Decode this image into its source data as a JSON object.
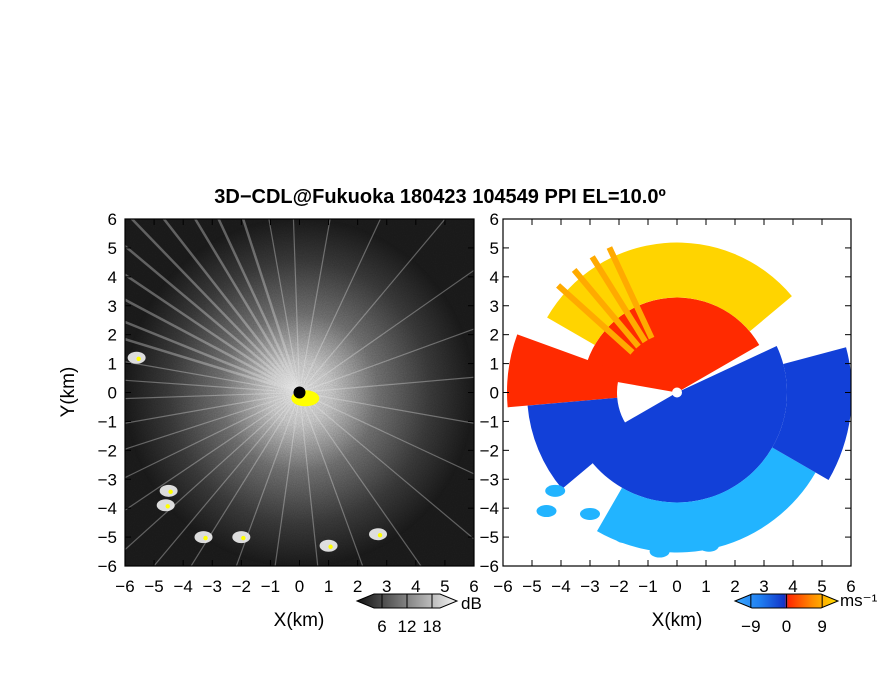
{
  "figure": {
    "title": "3D−CDL@Fukuoka 180423 104549 PPI EL=10.0º"
  },
  "chart_data": [
    {
      "type": "heatmap",
      "panel": "left",
      "quantity": "reflectivity / signal (dB)",
      "xlabel": "X(km)",
      "ylabel": "Y(km)",
      "xlim": [
        -6,
        6
      ],
      "ylim": [
        -6,
        6
      ],
      "xticks": [
        "−6",
        "−5",
        "−4",
        "−3",
        "−2",
        "−1",
        "0",
        "1",
        "2",
        "3",
        "4",
        "5",
        "6"
      ],
      "yticks": [
        "6",
        "5",
        "4",
        "3",
        "2",
        "1",
        "0",
        "−1",
        "−2",
        "−3",
        "−4",
        "−5",
        "−6"
      ],
      "colorbar": {
        "label": "dB",
        "ticks": [
          "6",
          "12",
          "18"
        ],
        "min": 0,
        "max": 24
      },
      "colors": {
        "low": "#111111",
        "high": "#f2f2f2",
        "saturated": "#ffff00",
        "radar_site": "#000000"
      },
      "features": [
        {
          "what": "bright echo near radar",
          "x": 0.2,
          "y": -0.2
        },
        {
          "what": "ground clutter",
          "x": -5.6,
          "y": 1.2
        },
        {
          "what": "ground clutter",
          "x": -4.5,
          "y": -3.4
        },
        {
          "what": "ground clutter",
          "x": -4.6,
          "y": -3.9
        },
        {
          "what": "ground clutter",
          "x": -3.3,
          "y": -5.0
        },
        {
          "what": "ground clutter",
          "x": -2.0,
          "y": -5.0
        },
        {
          "what": "ground clutter",
          "x": 1.0,
          "y": -5.3
        },
        {
          "what": "ground clutter",
          "x": 2.7,
          "y": -4.9
        }
      ]
    },
    {
      "type": "heatmap",
      "panel": "right",
      "quantity": "Doppler velocity (ms⁻¹)",
      "xlabel": "X(km)",
      "xlim": [
        -6,
        6
      ],
      "ylim": [
        -6,
        6
      ],
      "xticks": [
        "−6",
        "−5",
        "−4",
        "−3",
        "−2",
        "−1",
        "0",
        "1",
        "2",
        "3",
        "4",
        "5",
        "6"
      ],
      "yticks": [
        "6",
        "5",
        "4",
        "3",
        "2",
        "1",
        "0",
        "−1",
        "−2",
        "−3",
        "−4",
        "−5",
        "−6"
      ],
      "colorbar": {
        "label": "ms⁻¹",
        "ticks": [
          "−9",
          "0",
          "9"
        ],
        "min": -13,
        "max": 13
      },
      "colors": {
        "strong_negative": "#1240d8",
        "weak_negative": "#22b4ff",
        "weak_positive": "#ffd400",
        "strong_positive": "#ff2a00"
      },
      "features": [
        {
          "what": "receding flow (positive)",
          "sector": "north and west",
          "value": 9
        },
        {
          "what": "approaching flow (negative)",
          "sector": "south and east",
          "value": -9
        },
        {
          "what": "light approaching flow",
          "sector": "far south",
          "value": -4
        }
      ]
    }
  ]
}
